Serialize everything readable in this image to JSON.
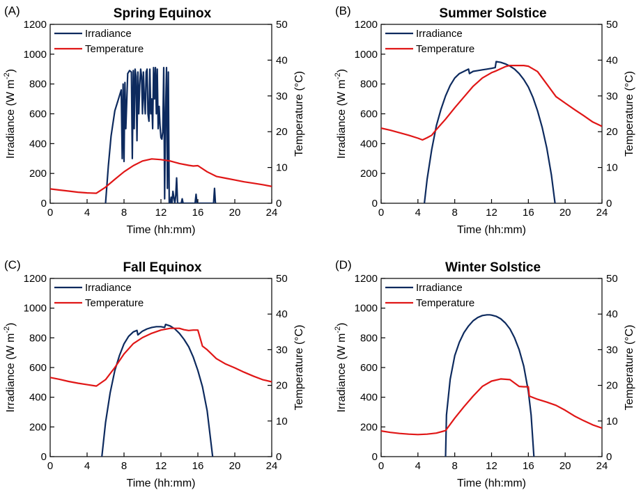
{
  "colors": {
    "irradiance": "#0d2a5e",
    "temperature": "#e01616",
    "axis": "#000000"
  },
  "chart_data": [
    {
      "id": "A",
      "panel_label": "(A)",
      "title": "Spring Equinox",
      "type": "line",
      "xlabel": "Time (hh:mm)",
      "ylabel_main": "Irradiance (W m",
      "ylabel_sup": "-2",
      "ylabel_close": ")",
      "y2label": "Temperature (°C)",
      "xlim": [
        0,
        24
      ],
      "ylim": [
        0,
        1200
      ],
      "y2lim": [
        0,
        50
      ],
      "xticks": [
        "0",
        "4",
        "8",
        "12",
        "16",
        "20",
        "24"
      ],
      "yticks": [
        "0",
        "200",
        "400",
        "600",
        "800",
        "1000",
        "1200"
      ],
      "y2ticks": [
        "0",
        "10",
        "20",
        "30",
        "40",
        "50"
      ],
      "legend": [
        "Irradiance",
        "Temperature"
      ],
      "series": [
        {
          "name": "Irradiance",
          "axis": "left",
          "x": [
            6.0,
            6.3,
            6.6,
            7.0,
            7.4,
            7.7,
            7.8,
            7.9,
            8.0,
            8.1,
            8.2,
            8.4,
            8.6,
            8.8,
            8.9,
            9.0,
            9.1,
            9.2,
            9.3,
            9.4,
            9.5,
            9.6,
            9.7,
            9.8,
            9.9,
            10.0,
            10.1,
            10.2,
            10.3,
            10.4,
            10.5,
            10.6,
            10.7,
            10.8,
            10.9,
            11.0,
            11.1,
            11.2,
            11.3,
            11.4,
            11.5,
            11.6,
            11.7,
            11.8,
            11.9,
            12.0,
            12.1,
            12.2,
            12.3,
            12.4,
            12.5,
            12.6,
            12.7,
            12.8,
            12.9,
            13.0,
            13.1,
            13.2,
            13.3,
            13.5,
            13.6,
            13.7,
            13.8,
            14.0,
            14.2,
            14.3,
            14.4,
            14.6,
            15.0,
            15.5,
            15.7,
            15.8,
            15.9,
            16.0,
            16.5,
            17.0,
            17.5,
            17.7,
            17.8,
            17.9,
            18.0
          ],
          "y": [
            0,
            250,
            450,
            620,
            700,
            760,
            300,
            800,
            280,
            810,
            500,
            870,
            890,
            880,
            300,
            890,
            500,
            900,
            850,
            420,
            880,
            600,
            790,
            900,
            850,
            600,
            880,
            700,
            600,
            880,
            900,
            600,
            550,
            900,
            600,
            700,
            500,
            910,
            700,
            910,
            600,
            900,
            500,
            650,
            520,
            440,
            430,
            480,
            910,
            30,
            600,
            910,
            100,
            880,
            0,
            0,
            40,
            0,
            80,
            0,
            50,
            170,
            0,
            0,
            0,
            30,
            0,
            0,
            0,
            0,
            0,
            60,
            0,
            0,
            0,
            0,
            0,
            0,
            100,
            0,
            0
          ]
        },
        {
          "name": "Temperature",
          "axis": "right",
          "x": [
            0,
            1,
            2,
            3,
            4,
            5,
            6,
            7,
            8,
            9,
            10,
            11,
            12,
            13,
            14,
            15,
            15.5,
            16,
            17,
            18,
            19,
            20,
            21,
            22,
            23,
            24
          ],
          "y": [
            4.0,
            3.7,
            3.4,
            3.1,
            2.9,
            2.8,
            4.5,
            6.7,
            8.8,
            10.5,
            11.8,
            12.4,
            12.2,
            11.8,
            11.1,
            10.6,
            10.4,
            10.5,
            8.8,
            7.5,
            7.0,
            6.5,
            6.0,
            5.6,
            5.2,
            4.7
          ]
        }
      ]
    },
    {
      "id": "B",
      "panel_label": "(B)",
      "title": "Summer Solstice",
      "type": "line",
      "xlabel": "Time (hh:mm)",
      "ylabel_main": "Irradiance (W m",
      "ylabel_sup": "-2",
      "ylabel_close": ")",
      "y2label": "Temperature (°C)",
      "xlim": [
        0,
        24
      ],
      "ylim": [
        0,
        1200
      ],
      "y2lim": [
        0,
        50
      ],
      "xticks": [
        "0",
        "4",
        "8",
        "12",
        "16",
        "20",
        "24"
      ],
      "yticks": [
        "0",
        "200",
        "400",
        "600",
        "800",
        "1000",
        "1200"
      ],
      "y2ticks": [
        "0",
        "10",
        "20",
        "30",
        "40",
        "50"
      ],
      "legend": [
        "Irradiance",
        "Temperature"
      ],
      "series": [
        {
          "name": "Irradiance",
          "axis": "left",
          "x": [
            4.7,
            5.0,
            5.5,
            6.0,
            6.5,
            7.0,
            7.5,
            8.0,
            8.5,
            9.0,
            9.5,
            9.6,
            10.0,
            10.5,
            11.0,
            11.5,
            12.0,
            12.4,
            12.5,
            13.0,
            13.5,
            14.0,
            14.5,
            15.0,
            15.5,
            16.0,
            16.5,
            17.0,
            17.5,
            18.0,
            18.5,
            18.9
          ],
          "y": [
            0,
            160,
            360,
            520,
            630,
            720,
            790,
            840,
            870,
            885,
            900,
            870,
            885,
            890,
            895,
            900,
            905,
            910,
            950,
            945,
            935,
            920,
            900,
            870,
            830,
            780,
            710,
            620,
            510,
            370,
            190,
            0
          ]
        },
        {
          "name": "Temperature",
          "axis": "right",
          "x": [
            0,
            1,
            2,
            3,
            4,
            4.5,
            5,
            5.5,
            6,
            7,
            8,
            9,
            10,
            11,
            12,
            12.5,
            13,
            13.5,
            14,
            14.5,
            15,
            15.5,
            16,
            17,
            18,
            19,
            20,
            21,
            22,
            23,
            24
          ],
          "y": [
            21.0,
            20.4,
            19.7,
            19.0,
            18.2,
            17.7,
            18.3,
            19.0,
            20.6,
            23.5,
            26.7,
            29.7,
            32.7,
            35.0,
            36.5,
            37.0,
            37.6,
            38.2,
            38.5,
            38.5,
            38.5,
            38.5,
            38.3,
            36.8,
            33.3,
            29.8,
            28.0,
            26.2,
            24.5,
            22.7,
            21.5
          ]
        }
      ]
    },
    {
      "id": "C",
      "panel_label": "(C)",
      "title": "Fall Equinox",
      "type": "line",
      "xlabel": "Time (hh:mm)",
      "ylabel_main": "Irradiance (W m",
      "ylabel_sup": "-2",
      "ylabel_close": ")",
      "y2label": "Temperature (°C)",
      "xlim": [
        0,
        24
      ],
      "ylim": [
        0,
        1200
      ],
      "y2lim": [
        0,
        50
      ],
      "xticks": [
        "0",
        "4",
        "8",
        "12",
        "16",
        "20",
        "24"
      ],
      "yticks": [
        "0",
        "200",
        "400",
        "600",
        "800",
        "1000",
        "1200"
      ],
      "y2ticks": [
        "0",
        "10",
        "20",
        "30",
        "40",
        "50"
      ],
      "legend": [
        "Irradiance",
        "Temperature"
      ],
      "series": [
        {
          "name": "Irradiance",
          "axis": "left",
          "x": [
            5.6,
            6.0,
            6.5,
            7.0,
            7.5,
            8.0,
            8.5,
            9.0,
            9.4,
            9.5,
            10.0,
            10.5,
            11.0,
            11.5,
            12.0,
            12.4,
            12.5,
            13.0,
            13.5,
            14.0,
            14.5,
            15.0,
            15.5,
            16.0,
            16.5,
            17.0,
            17.6
          ],
          "y": [
            0,
            230,
            430,
            580,
            680,
            760,
            810,
            840,
            850,
            820,
            845,
            860,
            870,
            875,
            875,
            870,
            890,
            880,
            860,
            830,
            790,
            740,
            670,
            580,
            470,
            310,
            0
          ]
        },
        {
          "name": "Temperature",
          "axis": "right",
          "x": [
            0,
            1,
            2,
            3,
            4,
            5,
            6,
            7,
            8,
            9,
            10,
            11,
            12,
            13,
            13.5,
            14,
            14.5,
            15,
            15.5,
            16,
            16.5,
            17,
            18,
            19,
            20,
            21,
            22,
            23,
            24
          ],
          "y": [
            22.2,
            21.7,
            21.1,
            20.6,
            20.2,
            19.8,
            21.6,
            25.0,
            28.8,
            31.7,
            33.4,
            34.6,
            35.5,
            36.0,
            36.0,
            36.0,
            35.6,
            35.4,
            35.5,
            35.5,
            31.0,
            30.0,
            27.5,
            26.0,
            24.9,
            23.7,
            22.6,
            21.6,
            21.0
          ]
        }
      ]
    },
    {
      "id": "D",
      "panel_label": "(D)",
      "title": "Winter Solstice",
      "type": "line",
      "xlabel": "Time (hh:mm)",
      "ylabel_main": "Irradiance (W m",
      "ylabel_sup": "-2",
      "ylabel_close": ")",
      "y2label": "Temperature (°C)",
      "xlim": [
        0,
        24
      ],
      "ylim": [
        0,
        1200
      ],
      "y2lim": [
        0,
        50
      ],
      "xticks": [
        "0",
        "4",
        "8",
        "12",
        "16",
        "20",
        "24"
      ],
      "yticks": [
        "0",
        "200",
        "400",
        "600",
        "800",
        "1000",
        "1200"
      ],
      "y2ticks": [
        "0",
        "10",
        "20",
        "30",
        "40",
        "50"
      ],
      "legend": [
        "Irradiance",
        "Temperature"
      ],
      "series": [
        {
          "name": "Irradiance",
          "axis": "left",
          "x": [
            7.0,
            7.1,
            7.5,
            8.0,
            8.5,
            9.0,
            9.5,
            10.0,
            10.5,
            11.0,
            11.5,
            11.8,
            12.0,
            12.5,
            13.0,
            13.5,
            14.0,
            14.5,
            15.0,
            15.5,
            16.0,
            16.3,
            16.6
          ],
          "y": [
            0,
            280,
            520,
            680,
            770,
            835,
            880,
            915,
            937,
            950,
            955,
            955,
            953,
            945,
            928,
            900,
            860,
            800,
            720,
            610,
            440,
            280,
            0
          ]
        },
        {
          "name": "Temperature",
          "axis": "right",
          "x": [
            0,
            1,
            2,
            3,
            4,
            5,
            6,
            7,
            8,
            9,
            10,
            11,
            12,
            13,
            14,
            15,
            15.5,
            16,
            16.1,
            17,
            18,
            19,
            20,
            21,
            22,
            23,
            24
          ],
          "y": [
            7.2,
            6.8,
            6.5,
            6.3,
            6.2,
            6.3,
            6.6,
            7.3,
            10.8,
            14.0,
            17.0,
            19.7,
            21.2,
            21.8,
            21.6,
            19.7,
            19.6,
            19.6,
            17.0,
            16.1,
            15.3,
            14.4,
            13.0,
            11.4,
            10.1,
            8.9,
            8.0
          ]
        }
      ]
    }
  ]
}
